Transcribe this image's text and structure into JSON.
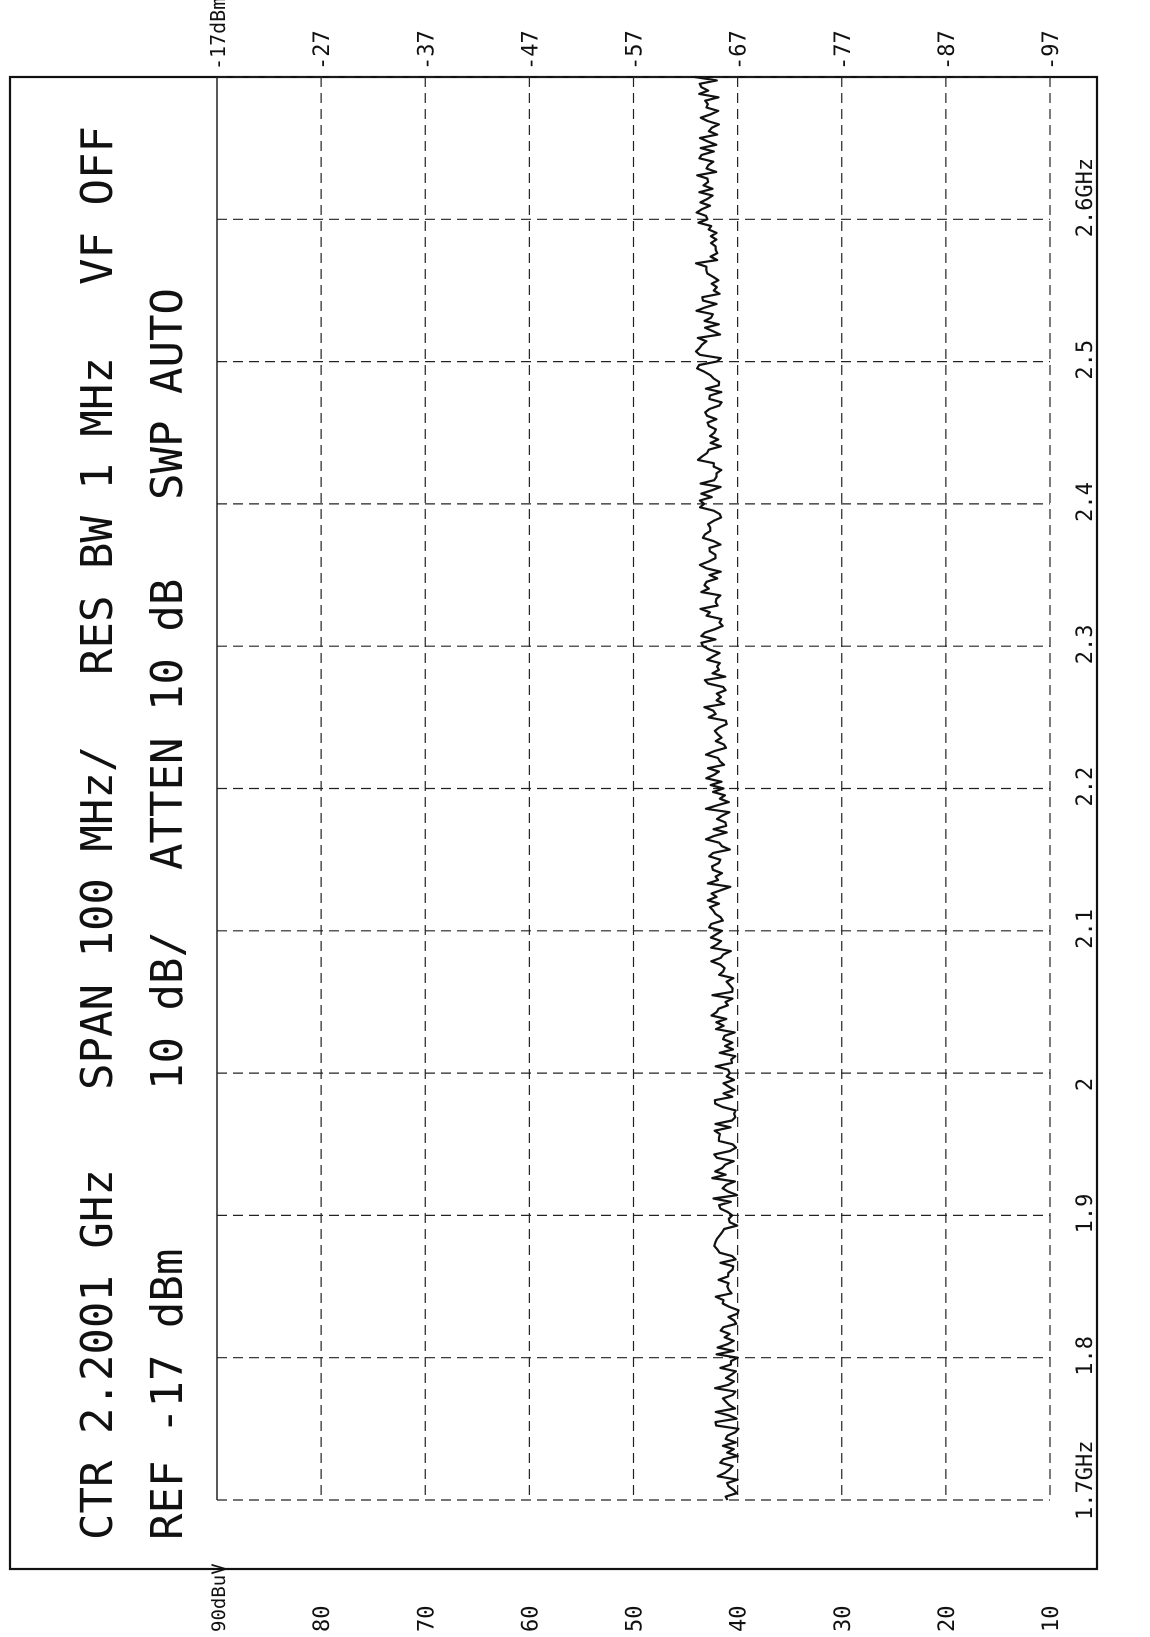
{
  "header": {
    "line1": [
      "CTR  2.2001 GHz",
      "SPAN 100 MHz/",
      "RES BW 1 MHz",
      "VF OFF"
    ],
    "line2": [
      "REF -17 dBm",
      "10 dB/",
      "ATTEN 10 dB",
      "SWP  AUTO"
    ]
  },
  "top_axis_labels": [
    "-17dBm",
    "-27",
    "-37",
    "-47",
    "-57",
    "-67",
    "-77",
    "-87",
    "-97"
  ],
  "bottom_axis_labels": [
    "90dBuV",
    "80",
    "70",
    "60",
    "50",
    "40",
    "30",
    "20",
    "10"
  ],
  "freq_labels": [
    "1.7GHz",
    "1.8",
    "1.9",
    "2",
    "2.1",
    "2.2",
    "2.3",
    "2.4",
    "2.5",
    "2.6GHz"
  ],
  "chart_data": {
    "type": "line",
    "orientation": "rotated 90 degrees clockwise",
    "x": [
      1.7,
      1.75,
      1.8,
      1.85,
      1.9,
      1.95,
      2.0,
      2.05,
      2.1,
      2.15,
      2.2,
      2.25,
      2.3,
      2.35,
      2.4,
      2.45,
      2.5,
      2.55,
      2.6,
      2.7
    ],
    "y": [
      -66,
      -66,
      -66,
      -66,
      -65.8,
      -65.7,
      -65.6,
      -65.5,
      -65.4,
      -65.2,
      -65,
      -64.8,
      -64.6,
      -64.5,
      -64.4,
      -64.3,
      -64.2,
      -64.1,
      -64,
      -64
    ],
    "xlim": [
      1.7,
      2.7
    ],
    "ylim": [
      -97,
      -17
    ],
    "xlabel": "GHz",
    "ylabel": "dBm",
    "grid": true
  }
}
